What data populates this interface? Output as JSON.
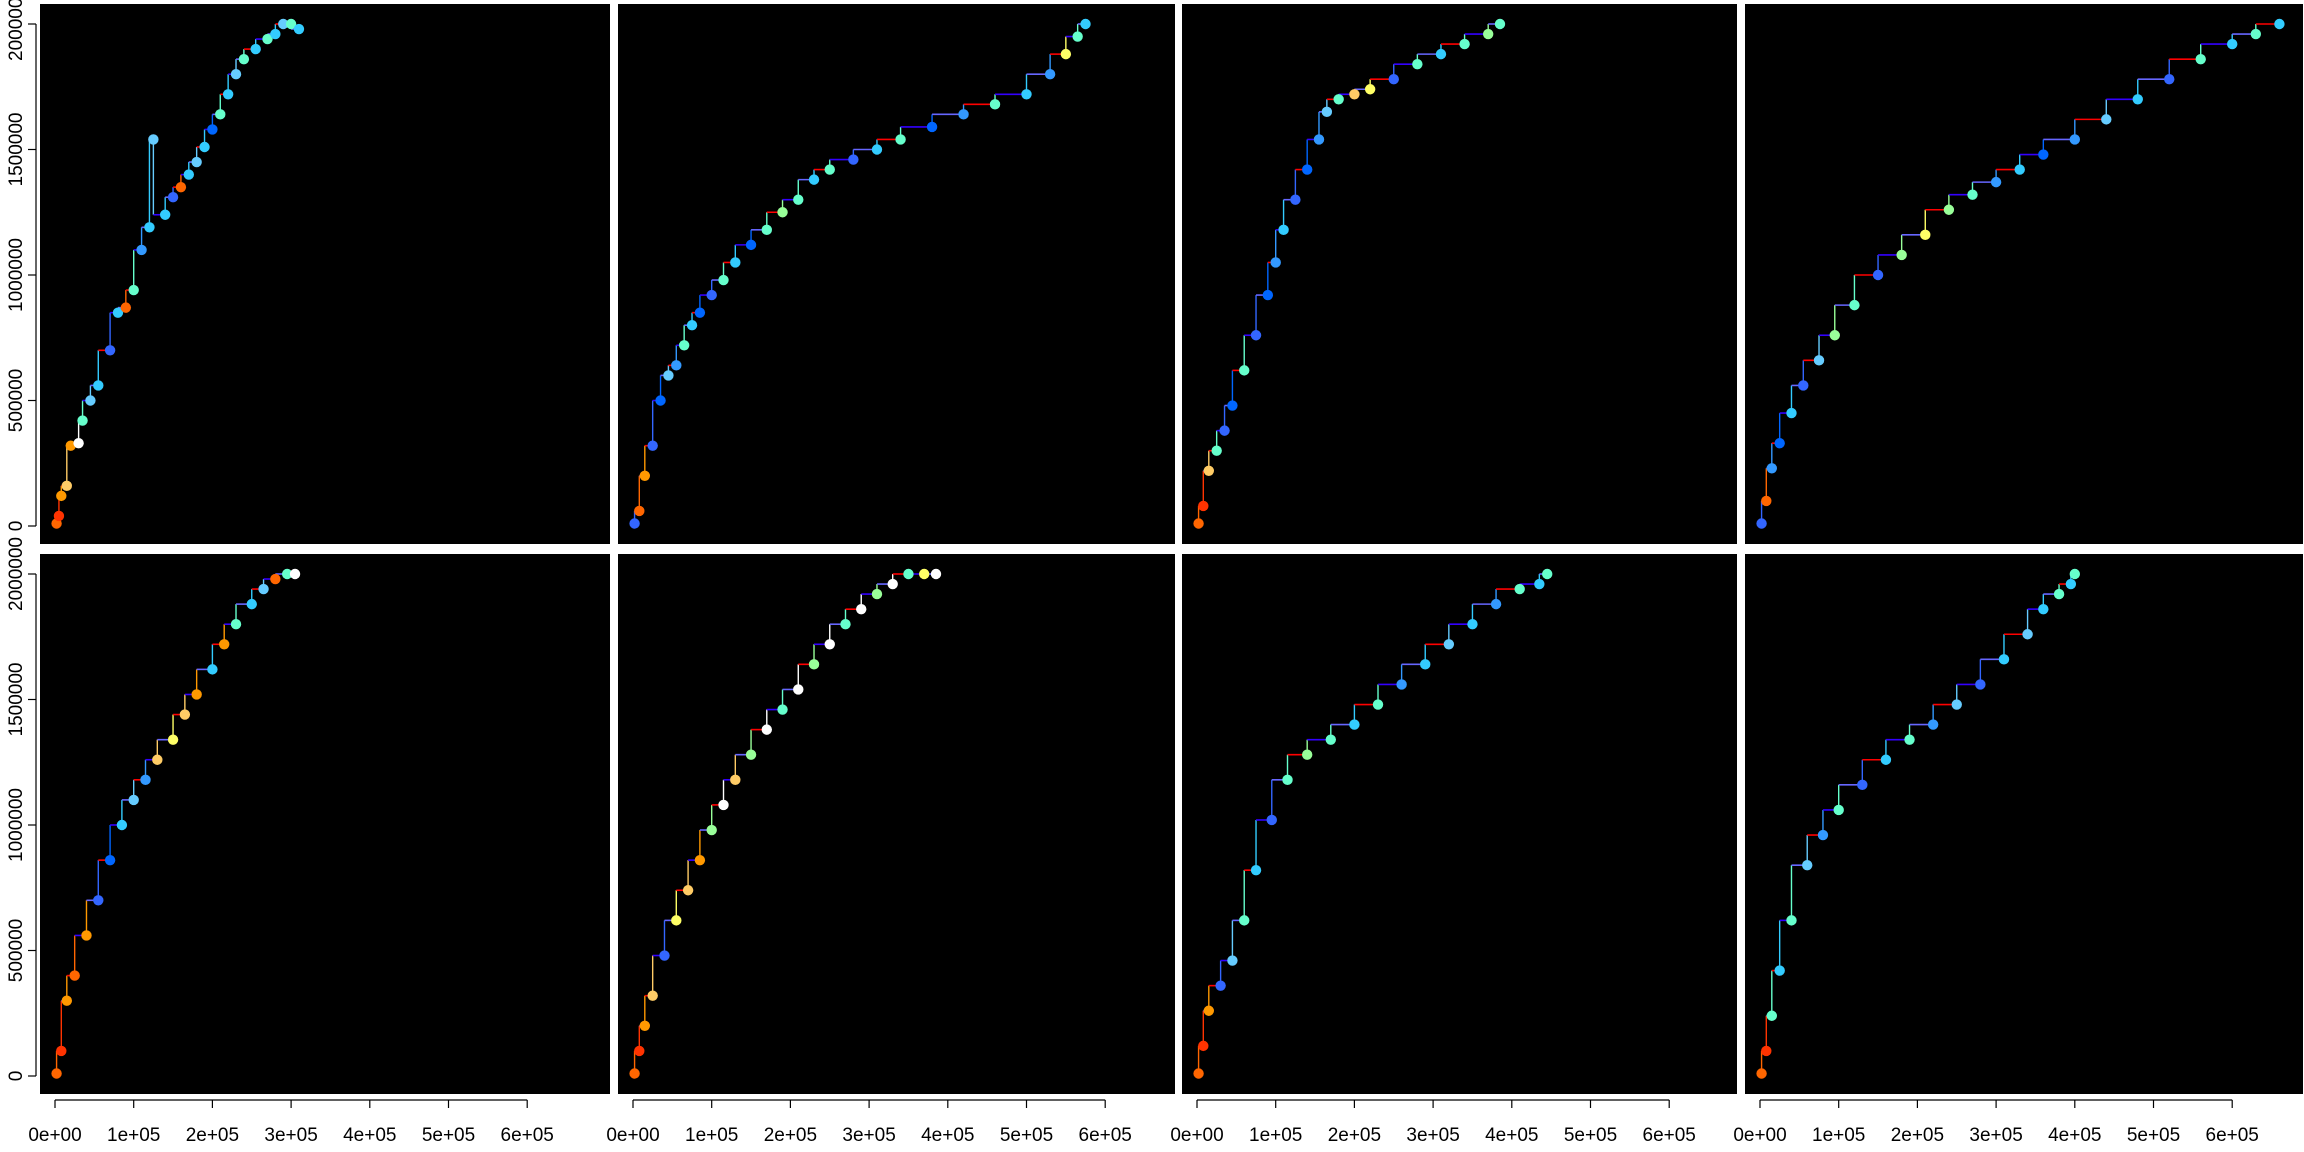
{
  "figure": {
    "background": "#000000",
    "axis_color": "#000000",
    "segment_colors": [
      "#ff0000",
      "#3300ff",
      "#6666ff"
    ],
    "x_ticks": [
      "0e+00",
      "1e+05",
      "2e+05",
      "3e+05",
      "4e+05",
      "5e+05",
      "6e+05"
    ],
    "y_ticks": [
      "0",
      "500000",
      "1000000",
      "1500000",
      "2000000"
    ]
  },
  "chart_data": [
    {
      "type": "scatter",
      "panel": "row1-col1",
      "xlim": [
        0,
        680000
      ],
      "ylim": [
        0,
        2000000
      ],
      "grid": false,
      "points": [
        [
          2000,
          10000,
          "#ff6600"
        ],
        [
          5000,
          40000,
          "#ff3300"
        ],
        [
          8000,
          120000,
          "#ff9900"
        ],
        [
          15000,
          160000,
          "#ffcc66"
        ],
        [
          20000,
          320000,
          "#ff9900"
        ],
        [
          30000,
          330000,
          "#ffffff"
        ],
        [
          35000,
          420000,
          "#66ffcc"
        ],
        [
          45000,
          500000,
          "#66ccff"
        ],
        [
          55000,
          560000,
          "#33ccff"
        ],
        [
          70000,
          700000,
          "#3366ff"
        ],
        [
          80000,
          850000,
          "#33ccff"
        ],
        [
          90000,
          870000,
          "#ff6600"
        ],
        [
          100000,
          940000,
          "#66ffcc"
        ],
        [
          110000,
          1100000,
          "#3399ff"
        ],
        [
          120000,
          1190000,
          "#33ccff"
        ],
        [
          125000,
          1540000,
          "#66ccff"
        ],
        [
          140000,
          1240000,
          "#33ccff"
        ],
        [
          150000,
          1310000,
          "#3366ff"
        ],
        [
          160000,
          1350000,
          "#ff6600"
        ],
        [
          170000,
          1400000,
          "#33ccff"
        ],
        [
          180000,
          1450000,
          "#66ccff"
        ],
        [
          190000,
          1510000,
          "#33ccff"
        ],
        [
          200000,
          1580000,
          "#0066ff"
        ],
        [
          210000,
          1640000,
          "#66ffcc"
        ],
        [
          220000,
          1720000,
          "#33ccff"
        ],
        [
          230000,
          1800000,
          "#66ccff"
        ],
        [
          240000,
          1860000,
          "#66ffcc"
        ],
        [
          255000,
          1900000,
          "#33ccff"
        ],
        [
          270000,
          1940000,
          "#66ffcc"
        ],
        [
          280000,
          1960000,
          "#33ccff"
        ],
        [
          290000,
          2000000,
          "#66ccff"
        ],
        [
          300000,
          2000000,
          "#66ffcc"
        ],
        [
          310000,
          1980000,
          "#33ccff"
        ]
      ]
    },
    {
      "type": "scatter",
      "panel": "row1-col2",
      "xlim": [
        0,
        680000
      ],
      "ylim": [
        0,
        2000000
      ],
      "grid": false,
      "points": [
        [
          2000,
          10000,
          "#3366ff"
        ],
        [
          8000,
          60000,
          "#ff6600"
        ],
        [
          15000,
          200000,
          "#ff9900"
        ],
        [
          25000,
          320000,
          "#3366ff"
        ],
        [
          35000,
          500000,
          "#0066ff"
        ],
        [
          45000,
          600000,
          "#66ccff"
        ],
        [
          55000,
          640000,
          "#3399ff"
        ],
        [
          65000,
          720000,
          "#66ffcc"
        ],
        [
          75000,
          800000,
          "#33ccff"
        ],
        [
          85000,
          850000,
          "#0066ff"
        ],
        [
          100000,
          920000,
          "#3366ff"
        ],
        [
          115000,
          980000,
          "#66ffcc"
        ],
        [
          130000,
          1050000,
          "#33ccff"
        ],
        [
          150000,
          1120000,
          "#0066ff"
        ],
        [
          170000,
          1180000,
          "#66ffcc"
        ],
        [
          190000,
          1250000,
          "#99ff99"
        ],
        [
          210000,
          1300000,
          "#66ffcc"
        ],
        [
          230000,
          1380000,
          "#33ccff"
        ],
        [
          250000,
          1420000,
          "#66ffcc"
        ],
        [
          280000,
          1460000,
          "#3366ff"
        ],
        [
          310000,
          1500000,
          "#33ccff"
        ],
        [
          340000,
          1540000,
          "#66ffcc"
        ],
        [
          380000,
          1590000,
          "#0066ff"
        ],
        [
          420000,
          1640000,
          "#3399ff"
        ],
        [
          460000,
          1680000,
          "#66ffcc"
        ],
        [
          500000,
          1720000,
          "#33ccff"
        ],
        [
          530000,
          1800000,
          "#3399ff"
        ],
        [
          550000,
          1880000,
          "#ffff66"
        ],
        [
          565000,
          1950000,
          "#66ffcc"
        ],
        [
          575000,
          2000000,
          "#33ccff"
        ]
      ]
    },
    {
      "type": "scatter",
      "panel": "row1-col3",
      "xlim": [
        0,
        680000
      ],
      "ylim": [
        0,
        2000000
      ],
      "grid": false,
      "points": [
        [
          2000,
          10000,
          "#ff6600"
        ],
        [
          8000,
          80000,
          "#ff3300"
        ],
        [
          15000,
          220000,
          "#ffcc66"
        ],
        [
          25000,
          300000,
          "#66ffcc"
        ],
        [
          35000,
          380000,
          "#3366ff"
        ],
        [
          45000,
          480000,
          "#0066ff"
        ],
        [
          60000,
          620000,
          "#66ffcc"
        ],
        [
          75000,
          760000,
          "#3366ff"
        ],
        [
          90000,
          920000,
          "#0066ff"
        ],
        [
          100000,
          1050000,
          "#3399ff"
        ],
        [
          110000,
          1180000,
          "#33ccff"
        ],
        [
          125000,
          1300000,
          "#3366ff"
        ],
        [
          140000,
          1420000,
          "#0066ff"
        ],
        [
          155000,
          1540000,
          "#3399ff"
        ],
        [
          165000,
          1650000,
          "#66ccff"
        ],
        [
          180000,
          1700000,
          "#66ffcc"
        ],
        [
          200000,
          1720000,
          "#ffcc66"
        ],
        [
          220000,
          1740000,
          "#ffff66"
        ],
        [
          250000,
          1780000,
          "#3366ff"
        ],
        [
          280000,
          1840000,
          "#66ffcc"
        ],
        [
          310000,
          1880000,
          "#33ccff"
        ],
        [
          340000,
          1920000,
          "#66ffcc"
        ],
        [
          370000,
          1960000,
          "#99ff99"
        ],
        [
          385000,
          2000000,
          "#66ffcc"
        ]
      ]
    },
    {
      "type": "scatter",
      "panel": "row1-col4",
      "xlim": [
        0,
        680000
      ],
      "ylim": [
        0,
        2000000
      ],
      "grid": false,
      "points": [
        [
          2000,
          10000,
          "#3366ff"
        ],
        [
          8000,
          100000,
          "#ff6600"
        ],
        [
          15000,
          230000,
          "#3399ff"
        ],
        [
          25000,
          330000,
          "#0066ff"
        ],
        [
          40000,
          450000,
          "#33ccff"
        ],
        [
          55000,
          560000,
          "#3366ff"
        ],
        [
          75000,
          660000,
          "#66ccff"
        ],
        [
          95000,
          760000,
          "#99ff99"
        ],
        [
          120000,
          880000,
          "#66ffcc"
        ],
        [
          150000,
          1000000,
          "#3366ff"
        ],
        [
          180000,
          1080000,
          "#99ff99"
        ],
        [
          210000,
          1160000,
          "#ffff66"
        ],
        [
          240000,
          1260000,
          "#99ff99"
        ],
        [
          270000,
          1320000,
          "#66ffcc"
        ],
        [
          300000,
          1370000,
          "#3399ff"
        ],
        [
          330000,
          1420000,
          "#33ccff"
        ],
        [
          360000,
          1480000,
          "#0066ff"
        ],
        [
          400000,
          1540000,
          "#3399ff"
        ],
        [
          440000,
          1620000,
          "#66ccff"
        ],
        [
          480000,
          1700000,
          "#33ccff"
        ],
        [
          520000,
          1780000,
          "#3366ff"
        ],
        [
          560000,
          1860000,
          "#66ffcc"
        ],
        [
          600000,
          1920000,
          "#33ccff"
        ],
        [
          630000,
          1960000,
          "#66ffcc"
        ],
        [
          660000,
          2000000,
          "#33ccff"
        ]
      ]
    },
    {
      "type": "scatter",
      "panel": "row2-col1",
      "xlim": [
        0,
        680000
      ],
      "ylim": [
        0,
        2000000
      ],
      "grid": false,
      "points": [
        [
          2000,
          10000,
          "#ff6600"
        ],
        [
          8000,
          100000,
          "#ff3300"
        ],
        [
          15000,
          300000,
          "#ff9900"
        ],
        [
          25000,
          400000,
          "#ff6600"
        ],
        [
          40000,
          560000,
          "#ff9900"
        ],
        [
          55000,
          700000,
          "#3366ff"
        ],
        [
          70000,
          860000,
          "#0066ff"
        ],
        [
          85000,
          1000000,
          "#33ccff"
        ],
        [
          100000,
          1100000,
          "#66ccff"
        ],
        [
          115000,
          1180000,
          "#3399ff"
        ],
        [
          130000,
          1260000,
          "#ffcc66"
        ],
        [
          150000,
          1340000,
          "#ffff66"
        ],
        [
          165000,
          1440000,
          "#ffcc66"
        ],
        [
          180000,
          1520000,
          "#ff9900"
        ],
        [
          200000,
          1620000,
          "#33ccff"
        ],
        [
          215000,
          1720000,
          "#ff9900"
        ],
        [
          230000,
          1800000,
          "#66ffcc"
        ],
        [
          250000,
          1880000,
          "#33ccff"
        ],
        [
          265000,
          1940000,
          "#66ccff"
        ],
        [
          280000,
          1980000,
          "#ff6600"
        ],
        [
          295000,
          2000000,
          "#66ffcc"
        ],
        [
          305000,
          2000000,
          "#ffffff"
        ]
      ]
    },
    {
      "type": "scatter",
      "panel": "row2-col2",
      "xlim": [
        0,
        680000
      ],
      "ylim": [
        0,
        2000000
      ],
      "grid": false,
      "points": [
        [
          2000,
          10000,
          "#ff6600"
        ],
        [
          8000,
          100000,
          "#ff3300"
        ],
        [
          15000,
          200000,
          "#ff9900"
        ],
        [
          25000,
          320000,
          "#ffcc66"
        ],
        [
          40000,
          480000,
          "#3366ff"
        ],
        [
          55000,
          620000,
          "#ffff66"
        ],
        [
          70000,
          740000,
          "#ffcc66"
        ],
        [
          85000,
          860000,
          "#ff9900"
        ],
        [
          100000,
          980000,
          "#99ff99"
        ],
        [
          115000,
          1080000,
          "#ffffff"
        ],
        [
          130000,
          1180000,
          "#ffcc66"
        ],
        [
          150000,
          1280000,
          "#99ff99"
        ],
        [
          170000,
          1380000,
          "#ffffff"
        ],
        [
          190000,
          1460000,
          "#66ffcc"
        ],
        [
          210000,
          1540000,
          "#ffffff"
        ],
        [
          230000,
          1640000,
          "#99ff99"
        ],
        [
          250000,
          1720000,
          "#ffffff"
        ],
        [
          270000,
          1800000,
          "#66ffcc"
        ],
        [
          290000,
          1860000,
          "#ffffff"
        ],
        [
          310000,
          1920000,
          "#99ff99"
        ],
        [
          330000,
          1960000,
          "#ffffff"
        ],
        [
          350000,
          2000000,
          "#66ffcc"
        ],
        [
          370000,
          2000000,
          "#ffff66"
        ],
        [
          385000,
          2000000,
          "#ffffff"
        ]
      ]
    },
    {
      "type": "scatter",
      "panel": "row2-col3",
      "xlim": [
        0,
        680000
      ],
      "ylim": [
        0,
        2000000
      ],
      "grid": false,
      "points": [
        [
          2000,
          10000,
          "#ff6600"
        ],
        [
          8000,
          120000,
          "#ff3300"
        ],
        [
          15000,
          260000,
          "#ff9900"
        ],
        [
          30000,
          360000,
          "#3366ff"
        ],
        [
          45000,
          460000,
          "#66ccff"
        ],
        [
          60000,
          620000,
          "#66ffcc"
        ],
        [
          75000,
          820000,
          "#33ccff"
        ],
        [
          95000,
          1020000,
          "#3366ff"
        ],
        [
          115000,
          1180000,
          "#66ffcc"
        ],
        [
          140000,
          1280000,
          "#99ff99"
        ],
        [
          170000,
          1340000,
          "#66ffcc"
        ],
        [
          200000,
          1400000,
          "#33ccff"
        ],
        [
          230000,
          1480000,
          "#66ffcc"
        ],
        [
          260000,
          1560000,
          "#3399ff"
        ],
        [
          290000,
          1640000,
          "#33ccff"
        ],
        [
          320000,
          1720000,
          "#66ccff"
        ],
        [
          350000,
          1800000,
          "#33ccff"
        ],
        [
          380000,
          1880000,
          "#3399ff"
        ],
        [
          410000,
          1940000,
          "#66ffcc"
        ],
        [
          435000,
          1960000,
          "#33ccff"
        ],
        [
          445000,
          2000000,
          "#66ffcc"
        ]
      ]
    },
    {
      "type": "scatter",
      "panel": "row2-col4",
      "xlim": [
        0,
        680000
      ],
      "ylim": [
        0,
        2000000
      ],
      "grid": false,
      "points": [
        [
          2000,
          10000,
          "#ff6600"
        ],
        [
          8000,
          100000,
          "#ff3300"
        ],
        [
          15000,
          240000,
          "#66ffcc"
        ],
        [
          25000,
          420000,
          "#33ccff"
        ],
        [
          40000,
          620000,
          "#66ffcc"
        ],
        [
          60000,
          840000,
          "#66ccff"
        ],
        [
          80000,
          960000,
          "#3399ff"
        ],
        [
          100000,
          1060000,
          "#66ffcc"
        ],
        [
          130000,
          1160000,
          "#3366ff"
        ],
        [
          160000,
          1260000,
          "#33ccff"
        ],
        [
          190000,
          1340000,
          "#66ffcc"
        ],
        [
          220000,
          1400000,
          "#3399ff"
        ],
        [
          250000,
          1480000,
          "#66ccff"
        ],
        [
          280000,
          1560000,
          "#3366ff"
        ],
        [
          310000,
          1660000,
          "#33ccff"
        ],
        [
          340000,
          1760000,
          "#66ccff"
        ],
        [
          360000,
          1860000,
          "#33ccff"
        ],
        [
          380000,
          1920000,
          "#66ffcc"
        ],
        [
          395000,
          1960000,
          "#33ccff"
        ],
        [
          400000,
          2000000,
          "#66ffcc"
        ]
      ]
    }
  ]
}
